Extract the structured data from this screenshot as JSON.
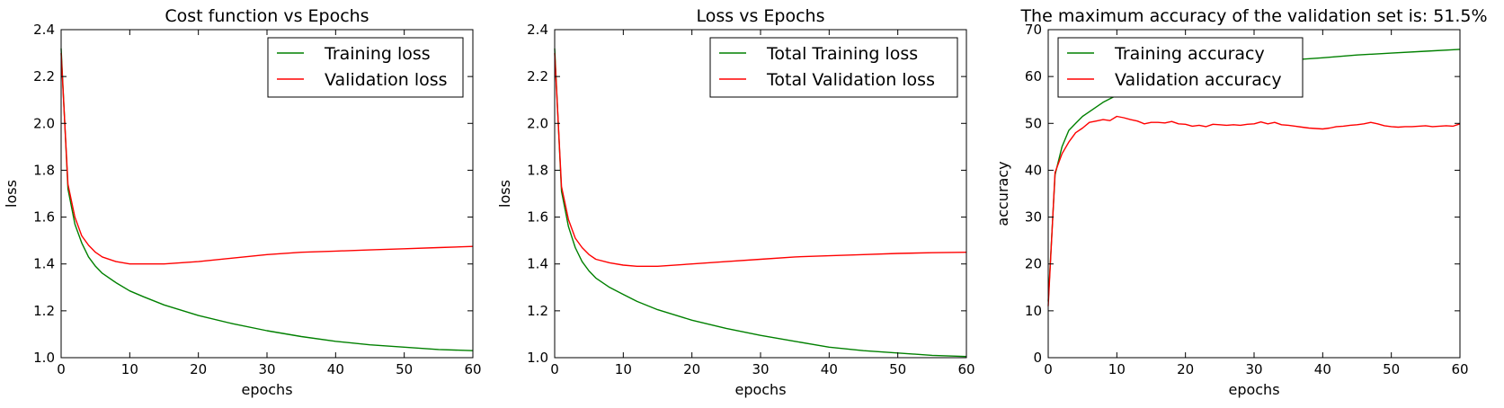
{
  "chart_data": [
    {
      "type": "line",
      "title": "Cost function vs Epochs",
      "xlabel": "epochs",
      "ylabel": "loss",
      "xlim": [
        0,
        60
      ],
      "ylim": [
        1.0,
        2.4
      ],
      "xticks": [
        0,
        10,
        20,
        30,
        40,
        50,
        60
      ],
      "xtick_labels": [
        "0",
        "10",
        "20",
        "30",
        "40",
        "50",
        "60"
      ],
      "yticks": [
        1.0,
        1.2,
        1.4,
        1.6,
        1.8,
        2.0,
        2.2,
        2.4
      ],
      "ytick_labels": [
        "1.0",
        "1.2",
        "1.4",
        "1.6",
        "1.8",
        "2.0",
        "2.2",
        "2.4"
      ],
      "legend_position": "top-right",
      "grid": false,
      "series": [
        {
          "name": "Training loss",
          "color": "#008000",
          "points": [
            [
              0,
              2.32
            ],
            [
              1,
              1.72
            ],
            [
              2,
              1.57
            ],
            [
              3,
              1.49
            ],
            [
              4,
              1.43
            ],
            [
              5,
              1.39
            ],
            [
              6,
              1.36
            ],
            [
              8,
              1.32
            ],
            [
              10,
              1.285
            ],
            [
              12,
              1.26
            ],
            [
              15,
              1.225
            ],
            [
              20,
              1.18
            ],
            [
              25,
              1.145
            ],
            [
              30,
              1.115
            ],
            [
              35,
              1.09
            ],
            [
              40,
              1.07
            ],
            [
              45,
              1.055
            ],
            [
              50,
              1.045
            ],
            [
              55,
              1.035
            ],
            [
              60,
              1.03
            ]
          ]
        },
        {
          "name": "Validation loss",
          "color": "#ff0000",
          "points": [
            [
              0,
              2.3
            ],
            [
              1,
              1.74
            ],
            [
              2,
              1.6
            ],
            [
              3,
              1.52
            ],
            [
              4,
              1.48
            ],
            [
              5,
              1.45
            ],
            [
              6,
              1.43
            ],
            [
              8,
              1.41
            ],
            [
              10,
              1.4
            ],
            [
              12,
              1.4
            ],
            [
              15,
              1.4
            ],
            [
              20,
              1.41
            ],
            [
              25,
              1.425
            ],
            [
              30,
              1.44
            ],
            [
              35,
              1.45
            ],
            [
              40,
              1.455
            ],
            [
              45,
              1.46
            ],
            [
              50,
              1.465
            ],
            [
              55,
              1.47
            ],
            [
              60,
              1.475
            ]
          ]
        }
      ]
    },
    {
      "type": "line",
      "title": "Loss vs Epochs",
      "xlabel": "epochs",
      "ylabel": "loss",
      "xlim": [
        0,
        60
      ],
      "ylim": [
        1.0,
        2.4
      ],
      "xticks": [
        0,
        10,
        20,
        30,
        40,
        50,
        60
      ],
      "xtick_labels": [
        "0",
        "10",
        "20",
        "30",
        "40",
        "50",
        "60"
      ],
      "yticks": [
        1.0,
        1.2,
        1.4,
        1.6,
        1.8,
        2.0,
        2.2,
        2.4
      ],
      "ytick_labels": [
        "1.0",
        "1.2",
        "1.4",
        "1.6",
        "1.8",
        "2.0",
        "2.2",
        "2.4"
      ],
      "legend_position": "top-right",
      "grid": false,
      "series": [
        {
          "name": "Total Training loss",
          "color": "#008000",
          "points": [
            [
              0,
              2.32
            ],
            [
              1,
              1.71
            ],
            [
              2,
              1.56
            ],
            [
              3,
              1.47
            ],
            [
              4,
              1.41
            ],
            [
              5,
              1.37
            ],
            [
              6,
              1.34
            ],
            [
              8,
              1.3
            ],
            [
              10,
              1.27
            ],
            [
              12,
              1.24
            ],
            [
              15,
              1.205
            ],
            [
              20,
              1.16
            ],
            [
              25,
              1.125
            ],
            [
              30,
              1.095
            ],
            [
              35,
              1.07
            ],
            [
              40,
              1.045
            ],
            [
              45,
              1.03
            ],
            [
              50,
              1.02
            ],
            [
              55,
              1.01
            ],
            [
              60,
              1.005
            ]
          ]
        },
        {
          "name": "Total Validation loss",
          "color": "#ff0000",
          "points": [
            [
              0,
              2.3
            ],
            [
              1,
              1.73
            ],
            [
              2,
              1.59
            ],
            [
              3,
              1.51
            ],
            [
              4,
              1.47
            ],
            [
              5,
              1.44
            ],
            [
              6,
              1.42
            ],
            [
              8,
              1.405
            ],
            [
              10,
              1.395
            ],
            [
              12,
              1.39
            ],
            [
              15,
              1.39
            ],
            [
              20,
              1.4
            ],
            [
              25,
              1.41
            ],
            [
              30,
              1.42
            ],
            [
              35,
              1.43
            ],
            [
              40,
              1.435
            ],
            [
              45,
              1.44
            ],
            [
              50,
              1.445
            ],
            [
              55,
              1.448
            ],
            [
              60,
              1.45
            ]
          ]
        }
      ]
    },
    {
      "type": "line",
      "title": "The maximum accuracy of the validation set is: 51.5%",
      "xlabel": "epochs",
      "ylabel": "accuracy",
      "xlim": [
        0,
        60
      ],
      "ylim": [
        0,
        70
      ],
      "xticks": [
        0,
        10,
        20,
        30,
        40,
        50,
        60
      ],
      "xtick_labels": [
        "0",
        "10",
        "20",
        "30",
        "40",
        "50",
        "60"
      ],
      "yticks": [
        0,
        10,
        20,
        30,
        40,
        50,
        60,
        70
      ],
      "ytick_labels": [
        "0",
        "10",
        "20",
        "30",
        "40",
        "50",
        "60",
        "70"
      ],
      "legend_position": "top-left",
      "grid": false,
      "series": [
        {
          "name": "Training accuracy",
          "color": "#008000",
          "points": [
            [
              0,
              12
            ],
            [
              1,
              39
            ],
            [
              2,
              45
            ],
            [
              3,
              48.5
            ],
            [
              4,
              50
            ],
            [
              5,
              51.5
            ],
            [
              6,
              52.5
            ],
            [
              8,
              54.5
            ],
            [
              10,
              56
            ],
            [
              12,
              57.5
            ],
            [
              15,
              59
            ],
            [
              20,
              60.5
            ],
            [
              25,
              61.8
            ],
            [
              30,
              62.8
            ],
            [
              35,
              63.5
            ],
            [
              40,
              64
            ],
            [
              45,
              64.6
            ],
            [
              50,
              65
            ],
            [
              55,
              65.4
            ],
            [
              60,
              65.8
            ]
          ]
        },
        {
          "name": "Validation accuracy",
          "color": "#ff0000",
          "points": [
            [
              0,
              11
            ],
            [
              1,
              39.5
            ],
            [
              2,
              43.5
            ],
            [
              3,
              46
            ],
            [
              4,
              48
            ],
            [
              5,
              49
            ],
            [
              6,
              50.2
            ],
            [
              7,
              50.5
            ],
            [
              8,
              50.8
            ],
            [
              9,
              50.6
            ],
            [
              10,
              51.5
            ],
            [
              11,
              51.2
            ],
            [
              12,
              50.8
            ],
            [
              13,
              50.5
            ],
            [
              14,
              49.9
            ],
            [
              15,
              50.2
            ],
            [
              16,
              50.2
            ],
            [
              17,
              50.1
            ],
            [
              18,
              50.4
            ],
            [
              19,
              49.9
            ],
            [
              20,
              49.8
            ],
            [
              21,
              49.4
            ],
            [
              22,
              49.6
            ],
            [
              23,
              49.3
            ],
            [
              24,
              49.8
            ],
            [
              25,
              49.7
            ],
            [
              26,
              49.6
            ],
            [
              27,
              49.7
            ],
            [
              28,
              49.6
            ],
            [
              29,
              49.8
            ],
            [
              30,
              49.9
            ],
            [
              31,
              50.3
            ],
            [
              32,
              49.9
            ],
            [
              33,
              50.2
            ],
            [
              34,
              49.7
            ],
            [
              35,
              49.6
            ],
            [
              36,
              49.4
            ],
            [
              37,
              49.2
            ],
            [
              38,
              49
            ],
            [
              39,
              48.9
            ],
            [
              40,
              48.8
            ],
            [
              41,
              49
            ],
            [
              42,
              49.3
            ],
            [
              43,
              49.4
            ],
            [
              44,
              49.6
            ],
            [
              45,
              49.7
            ],
            [
              46,
              49.9
            ],
            [
              47,
              50.2
            ],
            [
              48,
              49.9
            ],
            [
              49,
              49.5
            ],
            [
              50,
              49.3
            ],
            [
              51,
              49.2
            ],
            [
              52,
              49.3
            ],
            [
              53,
              49.3
            ],
            [
              54,
              49.4
            ],
            [
              55,
              49.5
            ],
            [
              56,
              49.3
            ],
            [
              57,
              49.4
            ],
            [
              58,
              49.5
            ],
            [
              59,
              49.4
            ],
            [
              60,
              49.9
            ]
          ]
        }
      ]
    }
  ]
}
